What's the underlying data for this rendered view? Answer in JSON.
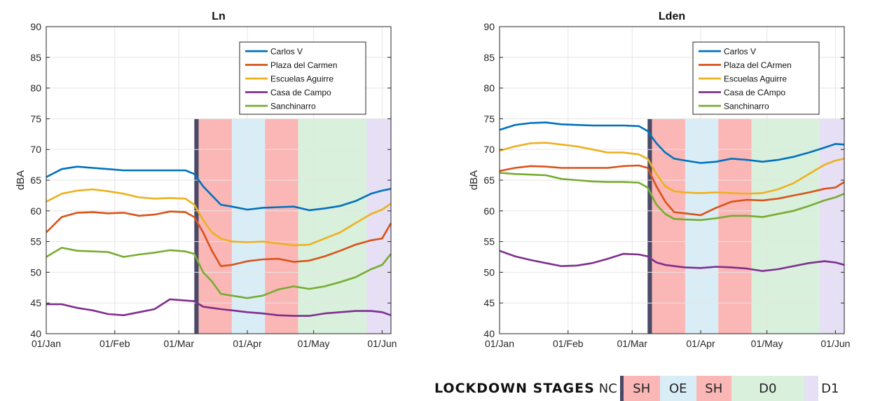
{
  "chart_data": [
    {
      "type": "line",
      "title": "Ln",
      "ylabel": "dBA",
      "xlabel": "",
      "ylim": [
        40,
        90
      ],
      "yticks": [
        40,
        45,
        50,
        55,
        60,
        65,
        70,
        75,
        80,
        85,
        90
      ],
      "xlim": [
        "2020-01-01",
        "2020-06-05"
      ],
      "xticks": [
        {
          "date": "2020-01-01",
          "label": "01/Jan"
        },
        {
          "date": "2020-02-01",
          "label": "01/Feb"
        },
        {
          "date": "2020-03-01",
          "label": "01/Mar"
        },
        {
          "date": "2020-04-01",
          "label": "01/Apr"
        },
        {
          "date": "2020-05-01",
          "label": "01/May"
        },
        {
          "date": "2020-06-01",
          "label": "01/Jun"
        }
      ],
      "grid": true,
      "legend_position": "top-right",
      "stages": [
        {
          "label": "NC",
          "start": "2020-03-08",
          "end": "2020-03-10",
          "color": "#4a4a66"
        },
        {
          "label": "SH",
          "start": "2020-03-10",
          "end": "2020-03-25",
          "color": "#fbb6b6"
        },
        {
          "label": "OE",
          "start": "2020-03-25",
          "end": "2020-04-09",
          "color": "#d9edf7"
        },
        {
          "label": "SH",
          "start": "2020-04-09",
          "end": "2020-04-24",
          "color": "#fbb6b6"
        },
        {
          "label": "D0",
          "start": "2020-04-24",
          "end": "2020-05-25",
          "color": "#d8f0dc"
        },
        {
          "label": "D1",
          "start": "2020-05-25",
          "end": "2020-06-05",
          "color": "#e6dff5"
        }
      ],
      "x": [
        "2020-01-01",
        "2020-01-08",
        "2020-01-15",
        "2020-01-22",
        "2020-01-29",
        "2020-02-05",
        "2020-02-12",
        "2020-02-19",
        "2020-02-26",
        "2020-03-04",
        "2020-03-08",
        "2020-03-12",
        "2020-03-16",
        "2020-03-20",
        "2020-03-25",
        "2020-04-01",
        "2020-04-08",
        "2020-04-15",
        "2020-04-22",
        "2020-04-29",
        "2020-05-06",
        "2020-05-13",
        "2020-05-20",
        "2020-05-27",
        "2020-06-01",
        "2020-06-05"
      ],
      "series": [
        {
          "name": "Carlos V",
          "color": "#0072BD",
          "values": [
            65.5,
            66.8,
            67.2,
            67.0,
            66.8,
            66.6,
            66.6,
            66.6,
            66.6,
            66.6,
            66.0,
            64.0,
            62.5,
            61.0,
            60.7,
            60.2,
            60.5,
            60.6,
            60.7,
            60.1,
            60.4,
            60.8,
            61.6,
            62.8,
            63.3,
            63.6
          ]
        },
        {
          "name": "Plaza del Carmen",
          "color": "#D95319",
          "values": [
            56.5,
            59.0,
            59.7,
            59.8,
            59.6,
            59.7,
            59.2,
            59.4,
            59.9,
            59.8,
            59.0,
            56.5,
            53.5,
            51.0,
            51.2,
            51.8,
            52.1,
            52.2,
            51.7,
            51.9,
            52.6,
            53.5,
            54.5,
            55.2,
            55.5,
            58.0
          ]
        },
        {
          "name": "Escuelas Aguirre",
          "color": "#EDB120",
          "values": [
            61.5,
            62.8,
            63.3,
            63.5,
            63.2,
            62.8,
            62.2,
            62.0,
            62.1,
            62.0,
            61.0,
            58.5,
            56.5,
            55.5,
            55.0,
            54.9,
            55.0,
            54.7,
            54.4,
            54.5,
            55.5,
            56.5,
            58.0,
            59.5,
            60.2,
            61.2
          ]
        },
        {
          "name": "Casa de Campo",
          "color": "#7E2F8E",
          "values": [
            44.8,
            44.8,
            44.2,
            43.8,
            43.2,
            43.0,
            43.5,
            44.0,
            45.6,
            45.4,
            45.3,
            44.4,
            44.2,
            44.0,
            43.8,
            43.5,
            43.3,
            43.0,
            42.9,
            42.9,
            43.3,
            43.5,
            43.7,
            43.7,
            43.5,
            43.0
          ]
        },
        {
          "name": "Sanchinarro",
          "color": "#77AC30",
          "values": [
            52.5,
            54.0,
            53.5,
            53.4,
            53.3,
            52.5,
            52.9,
            53.2,
            53.6,
            53.4,
            53.0,
            50.0,
            48.5,
            46.5,
            46.2,
            45.8,
            46.2,
            47.2,
            47.7,
            47.3,
            47.7,
            48.4,
            49.2,
            50.5,
            51.2,
            53.0
          ]
        }
      ]
    },
    {
      "type": "line",
      "title": "Lden",
      "ylabel": "dBA",
      "xlabel": "",
      "ylim": [
        40,
        90
      ],
      "yticks": [
        40,
        45,
        50,
        55,
        60,
        65,
        70,
        75,
        80,
        85,
        90
      ],
      "xlim": [
        "2020-01-01",
        "2020-06-05"
      ],
      "xticks": [
        {
          "date": "2020-01-01",
          "label": "01/Jan"
        },
        {
          "date": "2020-02-01",
          "label": "01/Feb"
        },
        {
          "date": "2020-03-01",
          "label": "01/Mar"
        },
        {
          "date": "2020-04-01",
          "label": "01/Apr"
        },
        {
          "date": "2020-05-01",
          "label": "01/May"
        },
        {
          "date": "2020-06-01",
          "label": "01/Jun"
        }
      ],
      "grid": true,
      "legend_position": "top-right",
      "stages": [
        {
          "label": "NC",
          "start": "2020-03-08",
          "end": "2020-03-10",
          "color": "#4a4a66"
        },
        {
          "label": "SH",
          "start": "2020-03-10",
          "end": "2020-03-25",
          "color": "#fbb6b6"
        },
        {
          "label": "OE",
          "start": "2020-03-25",
          "end": "2020-04-09",
          "color": "#d9edf7"
        },
        {
          "label": "SH",
          "start": "2020-04-09",
          "end": "2020-04-24",
          "color": "#fbb6b6"
        },
        {
          "label": "D0",
          "start": "2020-04-24",
          "end": "2020-05-25",
          "color": "#d8f0dc"
        },
        {
          "label": "D1",
          "start": "2020-05-25",
          "end": "2020-06-05",
          "color": "#e6dff5"
        }
      ],
      "x": [
        "2020-01-01",
        "2020-01-08",
        "2020-01-15",
        "2020-01-22",
        "2020-01-29",
        "2020-02-05",
        "2020-02-12",
        "2020-02-19",
        "2020-02-26",
        "2020-03-04",
        "2020-03-08",
        "2020-03-12",
        "2020-03-16",
        "2020-03-20",
        "2020-03-25",
        "2020-04-01",
        "2020-04-08",
        "2020-04-15",
        "2020-04-22",
        "2020-04-29",
        "2020-05-06",
        "2020-05-13",
        "2020-05-20",
        "2020-05-27",
        "2020-06-01",
        "2020-06-05"
      ],
      "series": [
        {
          "name": "Carlos V",
          "color": "#0072BD",
          "values": [
            73.2,
            74.0,
            74.3,
            74.4,
            74.1,
            74.0,
            73.9,
            73.9,
            73.9,
            73.8,
            73.0,
            71.0,
            69.5,
            68.5,
            68.2,
            67.8,
            68.0,
            68.5,
            68.3,
            68.0,
            68.3,
            68.8,
            69.5,
            70.3,
            70.9,
            70.8
          ]
        },
        {
          "name": "Plaza del CArmen",
          "color": "#D95319",
          "values": [
            66.5,
            67.0,
            67.3,
            67.2,
            67.0,
            67.0,
            67.0,
            67.0,
            67.3,
            67.4,
            67.0,
            64.0,
            61.5,
            59.8,
            59.6,
            59.3,
            60.5,
            61.5,
            61.8,
            61.7,
            62.0,
            62.5,
            63.0,
            63.6,
            63.8,
            64.7
          ]
        },
        {
          "name": "Escuelas Aguirre",
          "color": "#EDB120",
          "values": [
            69.8,
            70.5,
            71.0,
            71.1,
            70.8,
            70.5,
            70.0,
            69.5,
            69.5,
            69.2,
            68.5,
            66.0,
            64.0,
            63.2,
            63.0,
            62.9,
            63.0,
            62.9,
            62.8,
            62.9,
            63.5,
            64.5,
            66.0,
            67.5,
            68.2,
            68.5
          ]
        },
        {
          "name": "Casa de CAmpo",
          "color": "#7E2F8E",
          "values": [
            53.5,
            52.6,
            52.0,
            51.5,
            51.0,
            51.1,
            51.5,
            52.2,
            53.0,
            52.9,
            52.6,
            51.6,
            51.2,
            51.0,
            50.8,
            50.7,
            50.9,
            50.8,
            50.6,
            50.2,
            50.5,
            51.0,
            51.5,
            51.8,
            51.6,
            51.2
          ]
        },
        {
          "name": "Sanchinarro",
          "color": "#77AC30",
          "values": [
            66.2,
            66.0,
            65.9,
            65.8,
            65.2,
            65.0,
            64.8,
            64.7,
            64.7,
            64.6,
            63.8,
            61.0,
            59.5,
            58.7,
            58.6,
            58.5,
            58.8,
            59.2,
            59.2,
            59.0,
            59.5,
            60.0,
            60.8,
            61.7,
            62.2,
            62.8
          ]
        }
      ]
    }
  ],
  "lockdown_key": {
    "title": "LOCKDOWN STAGES",
    "stages": [
      {
        "label": "NC",
        "color": "#4a4a66"
      },
      {
        "label": "SH",
        "color": "#fbb6b6"
      },
      {
        "label": "OE",
        "color": "#d9edf7"
      },
      {
        "label": "SH",
        "color": "#fbb6b6"
      },
      {
        "label": "D0",
        "color": "#d8f0dc"
      },
      {
        "label": "D1",
        "color": "#e6dff5"
      }
    ]
  }
}
